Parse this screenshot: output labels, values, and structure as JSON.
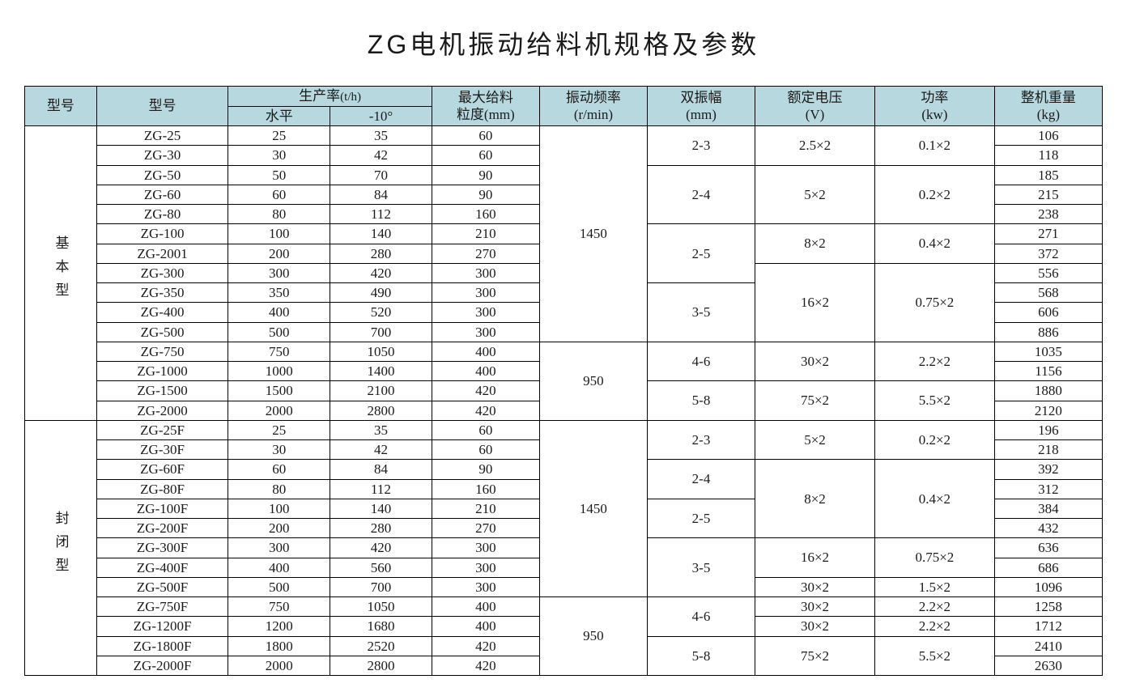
{
  "title": "ZG电机振动给料机规格及参数",
  "header": {
    "type": "型号",
    "model": "型号",
    "prod_rate": "生产率",
    "prod_rate_unit": "(t/h)",
    "horizontal": "水平",
    "minus10": "-10°",
    "max_feed": "最大给料",
    "max_feed2": "粒度(mm)",
    "vib_freq": "振动频率",
    "vib_freq2": "(r/min)",
    "amp": "双振幅",
    "amp2": "(mm)",
    "volt": "额定电压",
    "volt2": "(V)",
    "power": "功率",
    "power2": "(kw)",
    "weight": "整机重量",
    "weight2": "(kg)"
  },
  "colors": {
    "header_bg": "#b7d8df",
    "border": "#000000",
    "text": "#1a1a1a",
    "background": "#ffffff"
  },
  "groups": [
    {
      "label": "基本型",
      "freq_blocks": [
        {
          "value": "1450",
          "span": 11
        },
        {
          "value": "950",
          "span": 4
        }
      ],
      "amp_blocks": [
        {
          "value": "2-3",
          "span": 2
        },
        {
          "value": "2-4",
          "span": 3
        },
        {
          "value": "2-5",
          "span": 3
        },
        {
          "value": "3-5",
          "span": 3
        },
        {
          "value": "4-6",
          "span": 2
        },
        {
          "value": "5-8",
          "span": 2
        }
      ],
      "volt_blocks": [
        {
          "value": "2.5×2",
          "span": 2
        },
        {
          "value": "5×2",
          "span": 3
        },
        {
          "value": "8×2",
          "span": 2
        },
        {
          "value": "16×2",
          "span": 4
        },
        {
          "value": "30×2",
          "span": 2
        },
        {
          "value": "75×2",
          "span": 2
        }
      ],
      "power_blocks": [
        {
          "value": "0.1×2",
          "span": 2
        },
        {
          "value": "0.2×2",
          "span": 3
        },
        {
          "value": "0.4×2",
          "span": 2
        },
        {
          "value": "0.75×2",
          "span": 4
        },
        {
          "value": "2.2×2",
          "span": 2
        },
        {
          "value": "5.5×2",
          "span": 2
        }
      ],
      "rows": [
        {
          "model": "ZG-25",
          "h": "25",
          "m10": "35",
          "feed": "60",
          "wt": "106"
        },
        {
          "model": "ZG-30",
          "h": "30",
          "m10": "42",
          "feed": "60",
          "wt": "118"
        },
        {
          "model": "ZG-50",
          "h": "50",
          "m10": "70",
          "feed": "90",
          "wt": "185"
        },
        {
          "model": "ZG-60",
          "h": "60",
          "m10": "84",
          "feed": "90",
          "wt": "215"
        },
        {
          "model": "ZG-80",
          "h": "80",
          "m10": "112",
          "feed": "160",
          "wt": "238"
        },
        {
          "model": "ZG-100",
          "h": "100",
          "m10": "140",
          "feed": "210",
          "wt": "271"
        },
        {
          "model": "ZG-2001",
          "h": "200",
          "m10": "280",
          "feed": "270",
          "wt": "372"
        },
        {
          "model": "ZG-300",
          "h": "300",
          "m10": "420",
          "feed": "300",
          "wt": "556"
        },
        {
          "model": "ZG-350",
          "h": "350",
          "m10": "490",
          "feed": "300",
          "wt": "568"
        },
        {
          "model": "ZG-400",
          "h": "400",
          "m10": "520",
          "feed": "300",
          "wt": "606"
        },
        {
          "model": "ZG-500",
          "h": "500",
          "m10": "700",
          "feed": "300",
          "wt": "886"
        },
        {
          "model": "ZG-750",
          "h": "750",
          "m10": "1050",
          "feed": "400",
          "wt": "1035"
        },
        {
          "model": "ZG-1000",
          "h": "1000",
          "m10": "1400",
          "feed": "400",
          "wt": "1156"
        },
        {
          "model": "ZG-1500",
          "h": "1500",
          "m10": "2100",
          "feed": "420",
          "wt": "1880"
        },
        {
          "model": "ZG-2000",
          "h": "2000",
          "m10": "2800",
          "feed": "420",
          "wt": "2120"
        }
      ]
    },
    {
      "label": "封闭型",
      "freq_blocks": [
        {
          "value": "1450",
          "span": 9
        },
        {
          "value": "950",
          "span": 4
        }
      ],
      "amp_blocks": [
        {
          "value": "2-3",
          "span": 2
        },
        {
          "value": "2-4",
          "span": 2
        },
        {
          "value": "2-5",
          "span": 2
        },
        {
          "value": "3-5",
          "span": 3
        },
        {
          "value": "4-6",
          "span": 2
        },
        {
          "value": "5-8",
          "span": 2
        }
      ],
      "volt_blocks": [
        {
          "value": "5×2",
          "span": 2
        },
        {
          "value": "8×2",
          "span": 4
        },
        {
          "value": "16×2",
          "span": 2
        },
        {
          "value": "30×2",
          "span": 1
        },
        {
          "value": "30×2",
          "span": 1
        },
        {
          "value": "30×2",
          "span": 1
        },
        {
          "value": "75×2",
          "span": 2
        }
      ],
      "power_blocks": [
        {
          "value": "0.2×2",
          "span": 2
        },
        {
          "value": "0.4×2",
          "span": 4
        },
        {
          "value": "0.75×2",
          "span": 2
        },
        {
          "value": "1.5×2",
          "span": 1
        },
        {
          "value": "2.2×2",
          "span": 1
        },
        {
          "value": "2.2×2",
          "span": 1
        },
        {
          "value": "5.5×2",
          "span": 2
        }
      ],
      "rows": [
        {
          "model": "ZG-25F",
          "h": "25",
          "m10": "35",
          "feed": "60",
          "wt": "196"
        },
        {
          "model": "ZG-30F",
          "h": "30",
          "m10": "42",
          "feed": "60",
          "wt": "218"
        },
        {
          "model": "ZG-60F",
          "h": "60",
          "m10": "84",
          "feed": "90",
          "wt": "392"
        },
        {
          "model": "ZG-80F",
          "h": "80",
          "m10": "112",
          "feed": "160",
          "wt": "312"
        },
        {
          "model": "ZG-100F",
          "h": "100",
          "m10": "140",
          "feed": "210",
          "wt": "384"
        },
        {
          "model": "ZG-200F",
          "h": "200",
          "m10": "280",
          "feed": "270",
          "wt": "432"
        },
        {
          "model": "ZG-300F",
          "h": "300",
          "m10": "420",
          "feed": "300",
          "wt": "636"
        },
        {
          "model": "ZG-400F",
          "h": "400",
          "m10": "560",
          "feed": "300",
          "wt": "686"
        },
        {
          "model": "ZG-500F",
          "h": "500",
          "m10": "700",
          "feed": "300",
          "wt": "1096"
        },
        {
          "model": "ZG-750F",
          "h": "750",
          "m10": "1050",
          "feed": "400",
          "wt": "1258"
        },
        {
          "model": "ZG-1200F",
          "h": "1200",
          "m10": "1680",
          "feed": "400",
          "wt": "1712"
        },
        {
          "model": "ZG-1800F",
          "h": "1800",
          "m10": "2520",
          "feed": "420",
          "wt": "2410"
        },
        {
          "model": "ZG-2000F",
          "h": "2000",
          "m10": "2800",
          "feed": "420",
          "wt": "2630"
        }
      ]
    }
  ]
}
